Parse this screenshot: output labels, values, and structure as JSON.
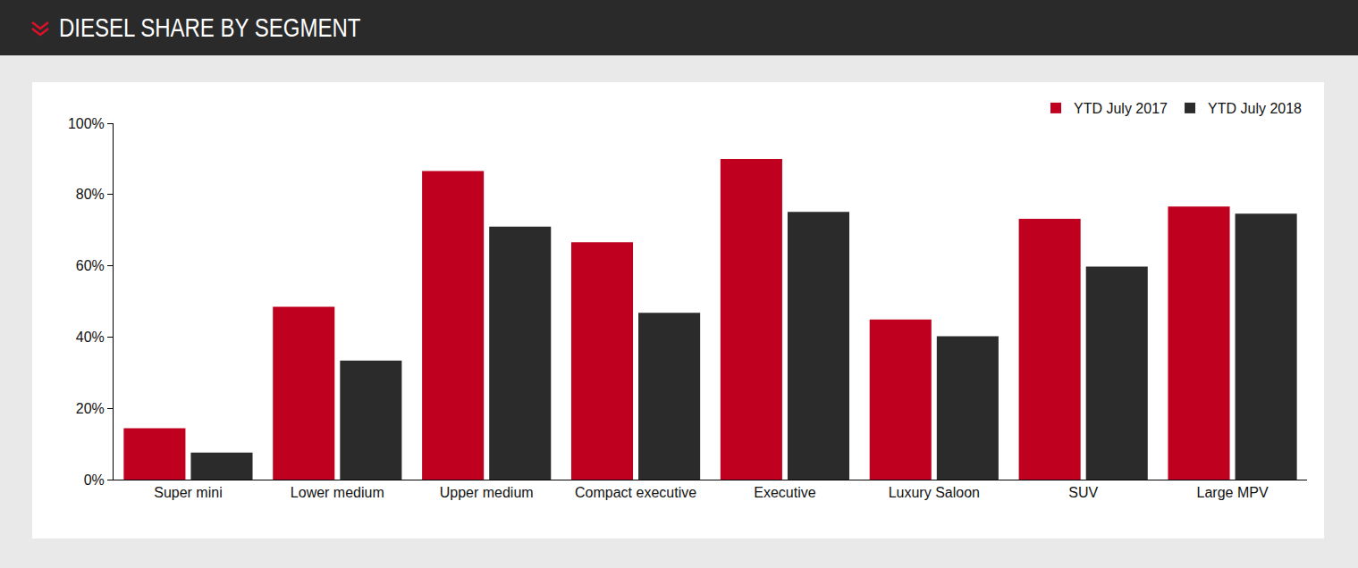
{
  "chart_data": {
    "type": "bar",
    "title": "DIESEL SHARE BY SEGMENT",
    "categories": [
      "Super mini",
      "Lower medium",
      "Upper medium",
      "Compact executive",
      "Executive",
      "Luxury Saloon",
      "SUV",
      "Large MPV"
    ],
    "series": [
      {
        "name": "YTD July 2017",
        "color": "#c0001f",
        "values": [
          14.4,
          48.5,
          86.6,
          66.6,
          90.0,
          44.9,
          73.2,
          76.6
        ]
      },
      {
        "name": "YTD July 2018",
        "color": "#2b2b2b",
        "values": [
          7.6,
          33.4,
          71.0,
          46.8,
          75.1,
          40.2,
          59.8,
          74.6
        ]
      }
    ],
    "ylim": [
      0,
      100
    ],
    "yticks": [
      {
        "value": 0,
        "label": "0%"
      },
      {
        "value": 20,
        "label": "20%"
      },
      {
        "value": 40,
        "label": "40%"
      },
      {
        "value": 60,
        "label": "60%"
      },
      {
        "value": 80,
        "label": "80%"
      },
      {
        "value": 100,
        "label": "100%"
      }
    ],
    "grid": false,
    "legend": "top right"
  }
}
